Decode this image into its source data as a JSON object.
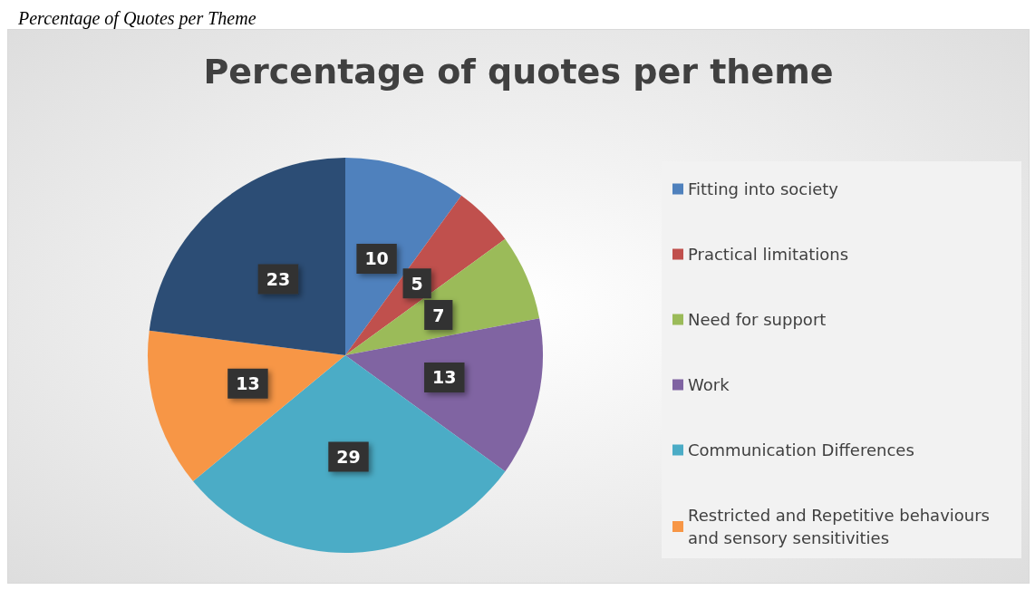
{
  "chart_data": {
    "type": "pie",
    "title": "Percentage of quotes per theme",
    "annotations": [
      "Percentage of Quotes per Theme"
    ],
    "categories": [
      "Fitting into society",
      "Practical limitations",
      "Need for support",
      "Work",
      "Communication Differences",
      "Restricted and Repetitive behaviours and sensory sensitivities",
      null
    ],
    "values": [
      10,
      5,
      7,
      13,
      29,
      13,
      23
    ],
    "colors": [
      "#4f81bd",
      "#c0504d",
      "#9bbb59",
      "#8064a2",
      "#4bacc6",
      "#f79646",
      "#2c4d75"
    ],
    "data_labels": true,
    "legend": "right"
  }
}
